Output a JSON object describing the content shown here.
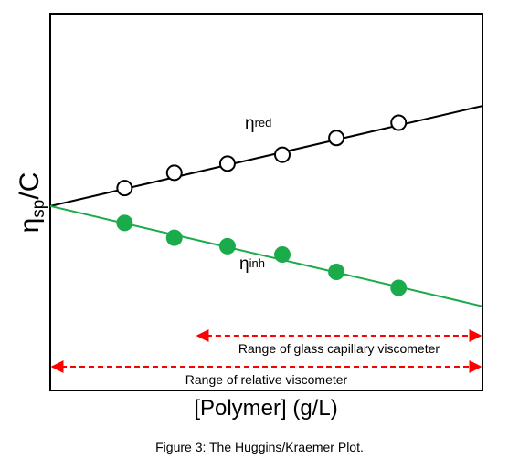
{
  "chart_data": {
    "type": "scatter",
    "title": "",
    "xlabel": "[Polymer] (g/L)",
    "ylabel": {
      "main": "η",
      "sub": "sp",
      "tail": "/C"
    },
    "xlim": [
      0,
      10
    ],
    "ylim": [
      -4.6,
      4.8
    ],
    "grid": false,
    "legend": "none",
    "series": [
      {
        "label_main": "η",
        "label_sub": "red",
        "marker": "open-circle",
        "line_color": "#000000",
        "marker_fill": "#ffffff",
        "marker_stroke": "#000000",
        "fit": {
          "x": [
            0,
            10
          ],
          "y": [
            0,
            2.5
          ]
        },
        "points": [
          {
            "x": 1.72,
            "y": 0.45
          },
          {
            "x": 2.87,
            "y": 0.83
          },
          {
            "x": 4.1,
            "y": 1.06
          },
          {
            "x": 5.37,
            "y": 1.28
          },
          {
            "x": 6.62,
            "y": 1.7
          },
          {
            "x": 8.06,
            "y": 2.08
          }
        ]
      },
      {
        "label_main": "η",
        "label_sub": "inh",
        "marker": "filled-circle",
        "line_color": "#1aab4a",
        "marker_fill": "#1aab4a",
        "marker_stroke": "#1aab4a",
        "fit": {
          "x": [
            0,
            10
          ],
          "y": [
            0,
            -2.5
          ]
        },
        "points": [
          {
            "x": 1.72,
            "y": -0.42
          },
          {
            "x": 2.87,
            "y": -0.79
          },
          {
            "x": 4.1,
            "y": -1.0
          },
          {
            "x": 5.37,
            "y": -1.21
          },
          {
            "x": 6.62,
            "y": -1.64
          },
          {
            "x": 8.06,
            "y": -2.04
          }
        ]
      }
    ],
    "ranges": [
      {
        "label": "Range of glass capillary viscometer",
        "x": [
          3.36,
          10
        ],
        "color": "#ff0000",
        "style": "dashed-double-arrow"
      },
      {
        "label": "Range of relative viscometer",
        "x": [
          0,
          10
        ],
        "color": "#ff0000",
        "style": "dashed-double-arrow"
      }
    ]
  },
  "caption": "Figure 3: The Huggins/Kraemer Plot."
}
